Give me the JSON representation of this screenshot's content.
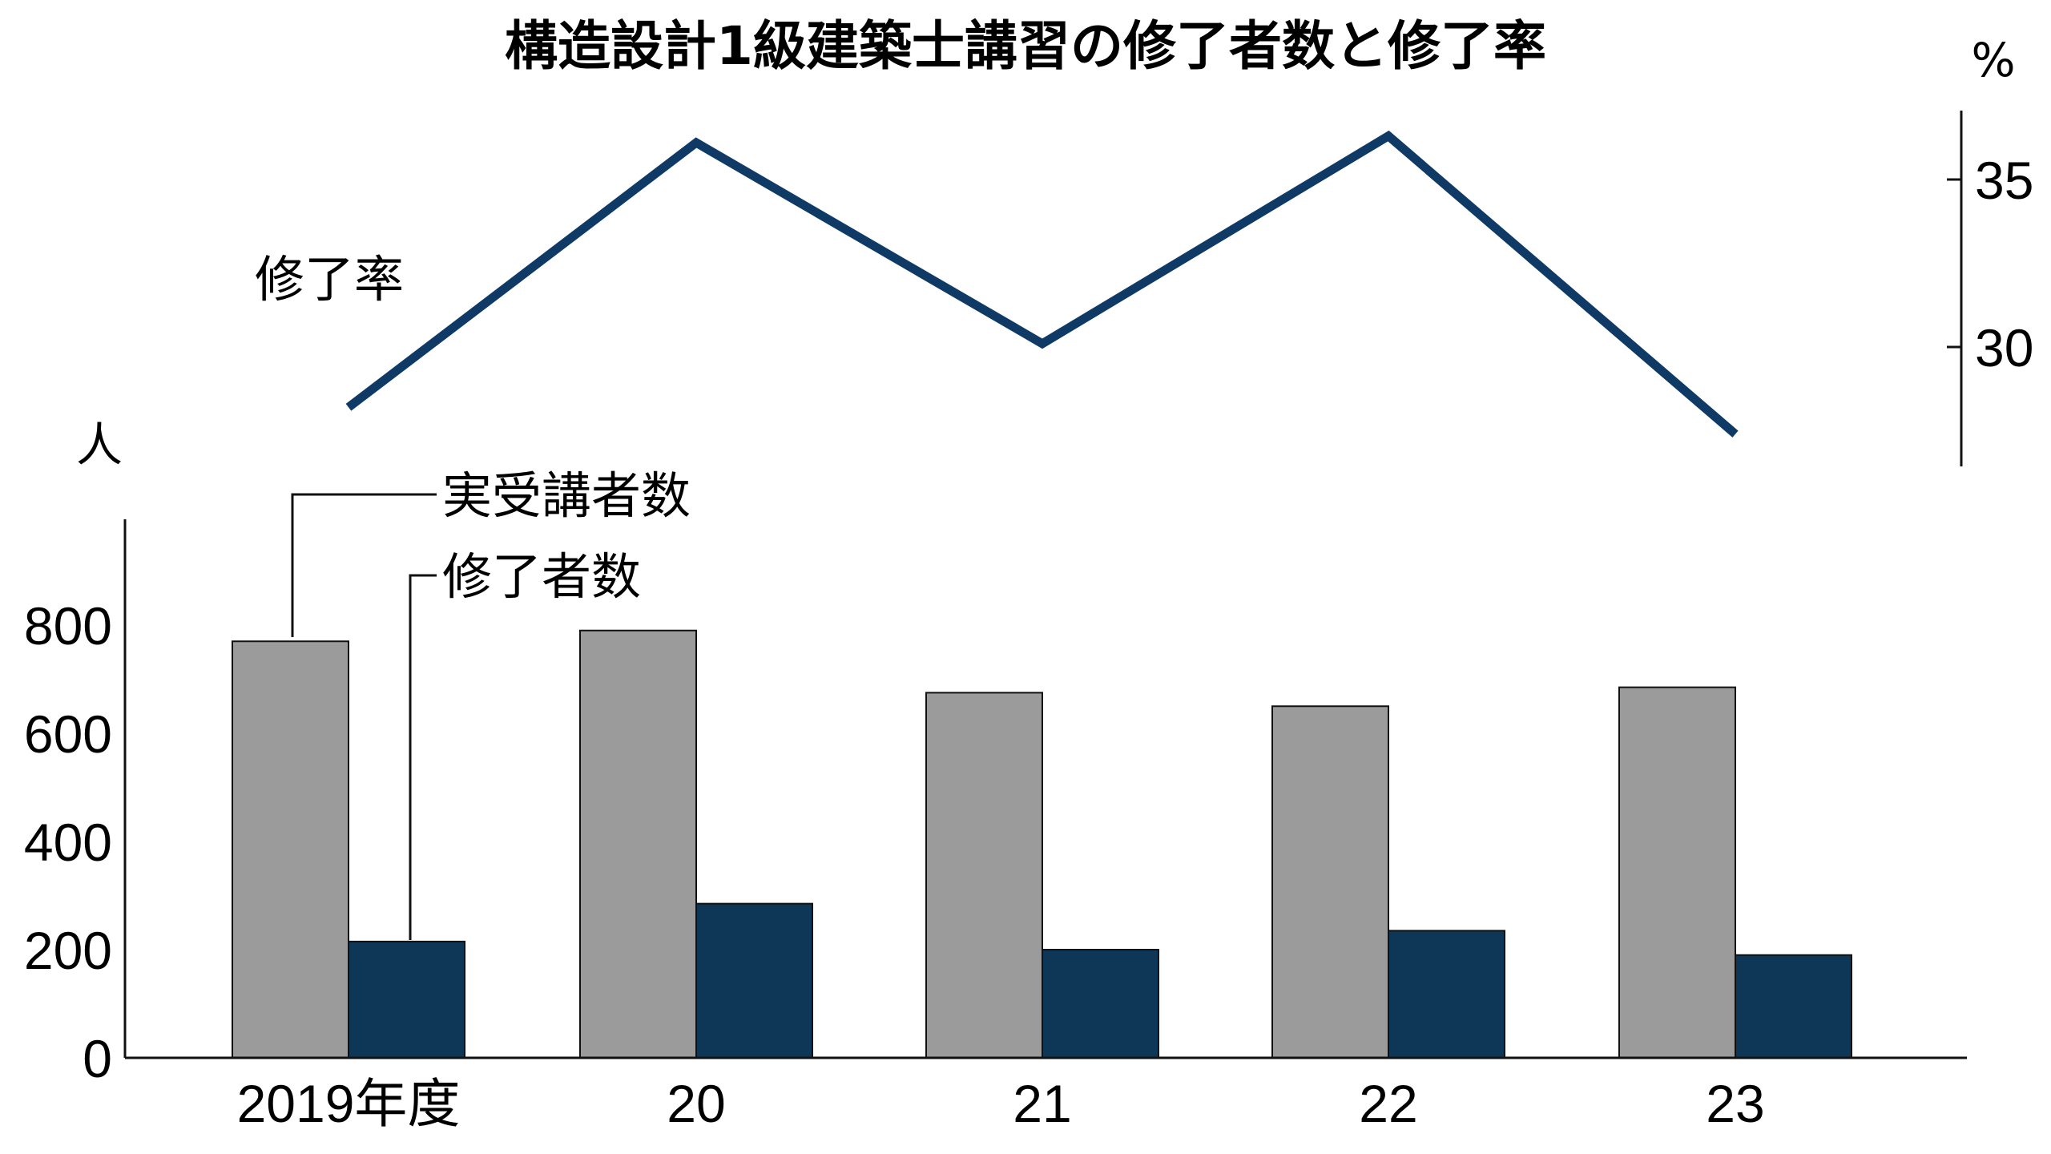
{
  "chart_data": {
    "type": "bar+line",
    "title": "構造設計1級建築士講習の修了者数と修了率",
    "categories": [
      "2019年度",
      "20",
      "21",
      "22",
      "23"
    ],
    "bar_axis": {
      "unit": "人",
      "ticks": [
        "0",
        "200",
        "400",
        "600",
        "800"
      ],
      "ylim": [
        0,
        1000
      ]
    },
    "line_axis": {
      "unit": "%",
      "ticks": [
        "30",
        "35"
      ],
      "ylim": [
        26.5,
        37
      ]
    },
    "series": [
      {
        "name": "実受講者数",
        "type": "bar",
        "color": "#9b9b9b",
        "values": [
          770,
          790,
          675,
          650,
          685
        ]
      },
      {
        "name": "修了者数",
        "type": "bar",
        "color": "#0d3657",
        "values": [
          215,
          285,
          200,
          235,
          190
        ]
      },
      {
        "name": "修了率",
        "type": "line",
        "color": "#0f3a66",
        "values": [
          28.2,
          36.1,
          30.1,
          36.3,
          27.4
        ]
      }
    ],
    "grid": false
  }
}
